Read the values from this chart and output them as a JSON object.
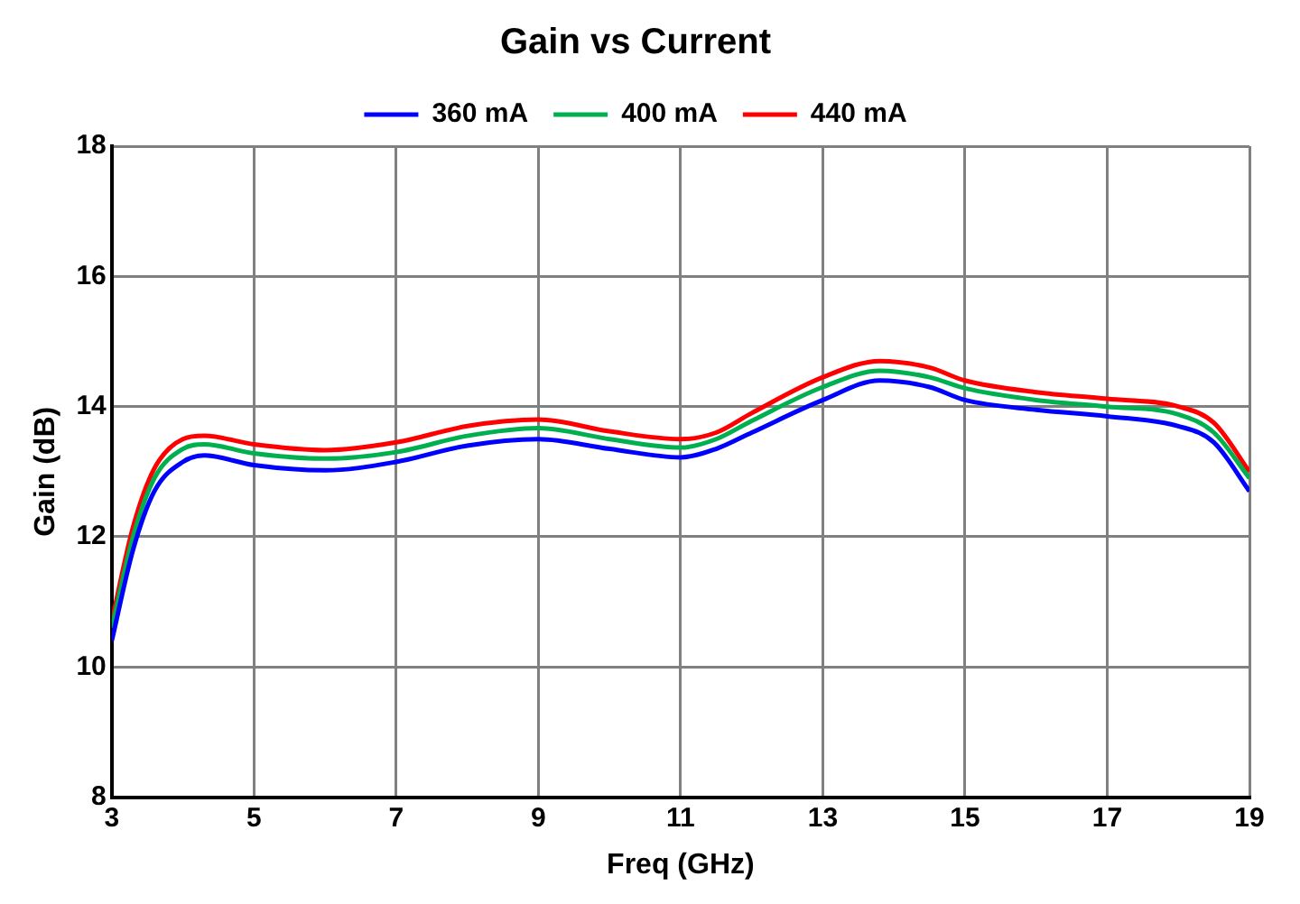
{
  "chart_data": {
    "type": "line",
    "title": "Gain vs Current",
    "xlabel": "Freq (GHz)",
    "ylabel": "Gain (dB)",
    "xlim": [
      3,
      19
    ],
    "xticks": [
      3,
      5,
      7,
      9,
      11,
      13,
      15,
      17,
      19
    ],
    "ylim": [
      8,
      18
    ],
    "yticks": [
      8,
      10,
      12,
      14,
      16,
      18
    ],
    "grid": true,
    "legend": "top",
    "marker": "none",
    "line_style": "solid",
    "x": [
      3,
      3.3,
      3.6,
      4,
      4.3,
      5,
      6,
      7,
      8,
      9,
      10,
      11,
      11.5,
      12,
      13,
      13.8,
      14.5,
      15,
      16,
      17,
      18,
      18.5,
      19
    ],
    "series": [
      {
        "name": "360 mA",
        "color": "#0000ff",
        "values": [
          10.4,
          11.8,
          12.7,
          13.15,
          13.25,
          13.1,
          13.02,
          13.15,
          13.4,
          13.5,
          13.35,
          13.22,
          13.35,
          13.6,
          14.1,
          14.4,
          14.3,
          14.1,
          13.95,
          13.85,
          13.7,
          13.45,
          12.7
        ]
      },
      {
        "name": "400 mA",
        "color": "#00b050",
        "values": [
          10.6,
          12.0,
          12.9,
          13.35,
          13.42,
          13.28,
          13.2,
          13.3,
          13.55,
          13.67,
          13.5,
          13.37,
          13.5,
          13.78,
          14.3,
          14.55,
          14.45,
          14.28,
          14.1,
          14.0,
          13.88,
          13.6,
          12.9
        ]
      },
      {
        "name": "440 mA",
        "color": "#ff0000",
        "values": [
          10.7,
          12.15,
          13.05,
          13.5,
          13.55,
          13.42,
          13.33,
          13.45,
          13.7,
          13.8,
          13.62,
          13.5,
          13.6,
          13.9,
          14.45,
          14.7,
          14.6,
          14.4,
          14.22,
          14.12,
          14.0,
          13.75,
          13.0
        ]
      }
    ]
  }
}
